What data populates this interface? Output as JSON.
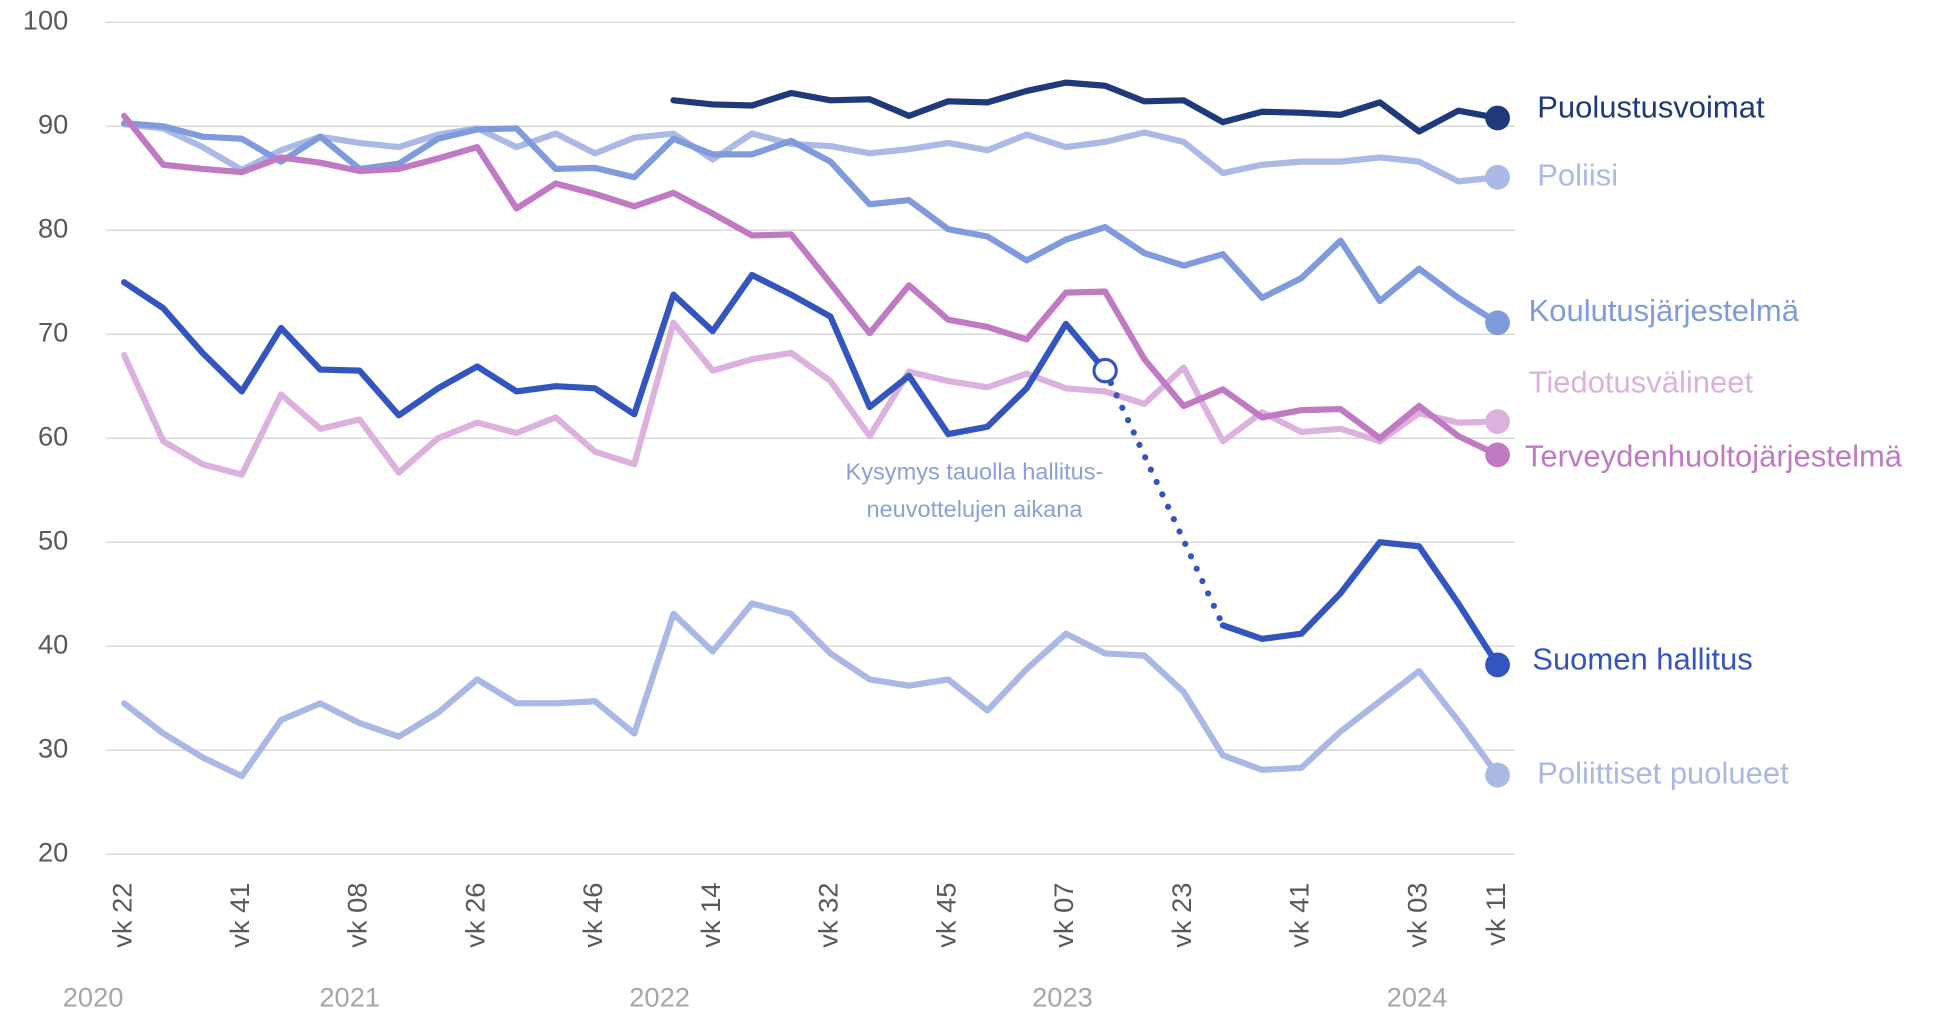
{
  "chart_data": {
    "type": "line",
    "categories": [
      "vk 22",
      null,
      null,
      "vk 41",
      null,
      null,
      "vk 08",
      null,
      null,
      "vk 26",
      null,
      null,
      "vk 46",
      null,
      null,
      "vk 14",
      null,
      null,
      "vk 32",
      null,
      null,
      "vk 45",
      null,
      null,
      "vk 07",
      null,
      null,
      "vk 23",
      null,
      null,
      "vk 41",
      null,
      null,
      "vk 03",
      null,
      "vk 11"
    ],
    "years": [
      "2020",
      "2021",
      "2022",
      "2023",
      "2024"
    ],
    "ylim": [
      20,
      100
    ],
    "yticks": [
      20,
      30,
      40,
      50,
      60,
      70,
      80,
      90,
      100
    ],
    "grid": true,
    "annotation": [
      "Kysymys tauolla hallitus-",
      "neuvottelujen aikana"
    ],
    "series": [
      {
        "name": "Puolustusvoimat",
        "color": "#1f3a7a",
        "values": [
          null,
          null,
          null,
          null,
          null,
          null,
          null,
          null,
          null,
          null,
          null,
          null,
          null,
          null,
          92.5,
          92.1,
          92,
          93.2,
          92.5,
          92.6,
          91,
          92.4,
          92.3,
          93.4,
          94.2,
          93.9,
          92.4,
          92.5,
          90.4,
          91.4,
          91.3,
          91.1,
          92.3,
          89.5,
          91.5,
          90.8
        ]
      },
      {
        "name": "Poliisi",
        "color": "#aab9e6",
        "values": [
          90.2,
          89.8,
          88,
          85.8,
          87.7,
          89,
          88.4,
          88,
          89.2,
          89.8,
          88,
          89.3,
          87.4,
          88.9,
          89.3,
          86.8,
          89.3,
          88.3,
          88.1,
          87.4,
          87.8,
          88.4,
          87.7,
          89.2,
          88,
          88.5,
          89.4,
          88.5,
          85.5,
          86.3,
          86.6,
          86.6,
          87,
          86.6,
          84.7,
          85.1
        ]
      },
      {
        "name": "Koulutusjärjestelmä",
        "color": "#7f9bdc",
        "values": [
          90.3,
          90,
          89,
          88.8,
          86.6,
          89,
          85.9,
          86.4,
          88.8,
          89.7,
          89.8,
          85.9,
          86,
          85.1,
          88.8,
          87.3,
          87.3,
          88.6,
          86.6,
          82.5,
          82.9,
          80.1,
          79.4,
          77.1,
          79.1,
          80.3,
          77.8,
          76.6,
          77.7,
          73.5,
          75.4,
          79,
          73.2,
          76.3,
          73.5,
          71.1
        ]
      },
      {
        "name": "Tiedotusvälineet",
        "color": "#dcb1de",
        "values": [
          68,
          59.7,
          57.5,
          56.5,
          64.2,
          60.9,
          61.8,
          56.7,
          60,
          61.5,
          60.5,
          62,
          58.7,
          57.5,
          71.1,
          66.5,
          67.6,
          68.2,
          65.5,
          60.2,
          66.4,
          65.5,
          64.9,
          66.2,
          64.8,
          64.5,
          63.3,
          66.8,
          59.7,
          62.5,
          60.6,
          60.9,
          59.7,
          62.4,
          61.5,
          61.6
        ]
      },
      {
        "name": "Terveydenhuoltojärjestelmä",
        "color": "#c07ac4",
        "values": [
          91,
          86.3,
          85.9,
          85.6,
          87,
          86.5,
          85.7,
          85.9,
          86.9,
          88,
          82.1,
          84.5,
          83.5,
          82.3,
          83.6,
          81.6,
          79.5,
          79.6,
          74.9,
          70.1,
          74.7,
          71.4,
          70.7,
          69.5,
          74,
          74.1,
          67.6,
          63.1,
          64.7,
          62,
          62.7,
          62.8,
          60,
          63.1,
          60.2,
          58.4
        ]
      },
      {
        "name": "Suomen hallitus",
        "color": "#3355c0",
        "values": [
          75,
          72.5,
          68.2,
          64.5,
          70.6,
          66.6,
          66.5,
          62.2,
          64.8,
          66.9,
          64.5,
          65,
          64.8,
          62.3,
          73.8,
          70.3,
          75.7,
          73.8,
          71.7,
          63,
          66,
          60.4,
          61.1,
          64.8,
          71,
          66.5,
          null,
          null,
          42,
          40.7,
          41.2,
          45.1,
          50,
          49.6,
          44.1,
          38.2
        ]
      },
      {
        "name": "Poliittiset puolueet",
        "color": "#a9b8e4",
        "values": [
          34.5,
          31.6,
          29.3,
          27.5,
          32.9,
          34.5,
          32.6,
          31.3,
          33.6,
          36.8,
          34.5,
          34.5,
          34.7,
          31.6,
          43.1,
          39.5,
          44.1,
          43.1,
          39.3,
          36.8,
          36.2,
          36.8,
          33.8,
          37.8,
          41.2,
          39.3,
          39.1,
          35.6,
          29.5,
          28.1,
          28.3,
          31.8,
          34.7,
          37.6,
          32.8,
          27.6
        ]
      }
    ]
  }
}
